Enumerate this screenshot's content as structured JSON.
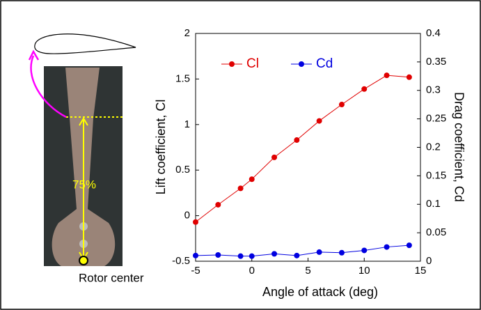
{
  "chart_data": {
    "type": "line",
    "x_label": "Angle of attack (deg)",
    "y_label": "Lift coefficient, Cl",
    "y2_label": "Drag coefficient, Cd",
    "annotations": [
      "75%",
      "Rotor center"
    ],
    "x": [
      -5,
      -3,
      -1,
      0,
      2,
      4,
      6,
      8,
      10,
      12,
      14
    ],
    "series": [
      {
        "name": "Cl",
        "color": "#e00000",
        "values": [
          -0.07,
          0.12,
          0.3,
          0.4,
          0.64,
          0.83,
          1.04,
          1.22,
          1.39,
          1.54,
          1.52
        ]
      },
      {
        "name": "Cd",
        "color": "#0000e0",
        "axis": "y2",
        "values": [
          0.01,
          0.011,
          0.009,
          0.009,
          0.013,
          0.01,
          0.016,
          0.015,
          0.019,
          0.025,
          0.028
        ]
      }
    ],
    "xlim": [
      -5,
      15
    ],
    "xticks": [
      -5,
      0,
      5,
      10,
      15
    ],
    "ylim": [
      -0.5,
      2
    ],
    "yticks": [
      -0.5,
      0,
      0.5,
      1,
      1.5,
      2
    ],
    "y2lim": [
      0,
      0.4
    ],
    "y2ticks": [
      0,
      0.05,
      0.1,
      0.15,
      0.2,
      0.25,
      0.3,
      0.35,
      0.4
    ],
    "legend": "top-left"
  }
}
